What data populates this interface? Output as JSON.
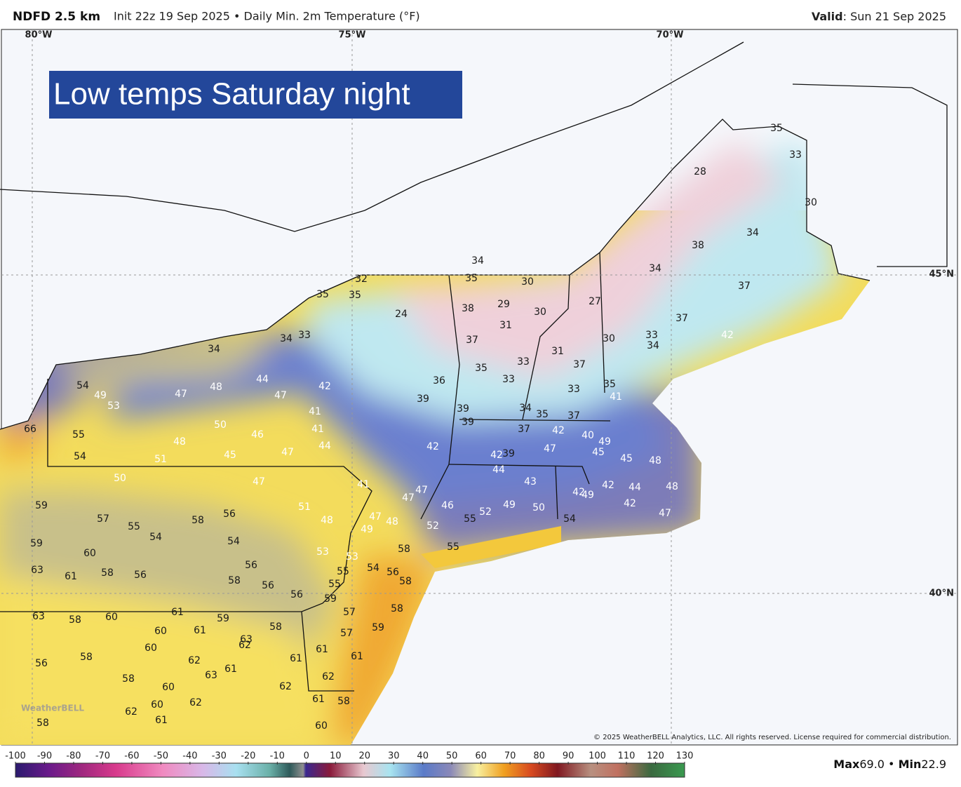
{
  "header": {
    "model": "NDFD 2.5 km",
    "info": "Init 22z 19 Sep 2025 • Daily Min. 2m Temperature (°F)",
    "valid_label": "Valid",
    "valid_date": ": Sun 21 Sep 2025"
  },
  "map": {
    "overlay_title": "Low temps Saturday night",
    "grid_labels": [
      "80°W",
      "75°W",
      "70°W",
      "45°N",
      "40°N"
    ],
    "copyright": "© 2025 WeatherBELL Analytics, LLC. All rights reserved. License required for commercial distribution.",
    "logo": "WeatherBELL",
    "labels": [
      34,
      32,
      35,
      35,
      35,
      30,
      24,
      38,
      29,
      30,
      27,
      31,
      34,
      37,
      37,
      28,
      33,
      35,
      30,
      34,
      38,
      33,
      34,
      34,
      37,
      35,
      33,
      31,
      30,
      33,
      34,
      42,
      37,
      36,
      33,
      33,
      35,
      41,
      39,
      39,
      39,
      34,
      35,
      37,
      44,
      42,
      47,
      48,
      47,
      54,
      49,
      53,
      41,
      41,
      44,
      50,
      46,
      48,
      45,
      47,
      51,
      37,
      42,
      40,
      49,
      45,
      47,
      42,
      42,
      39,
      44,
      48,
      45,
      66,
      55,
      54,
      50,
      47,
      41,
      43,
      42,
      44,
      48,
      42,
      49,
      47,
      47,
      46,
      52,
      55,
      49,
      50,
      51,
      48,
      47,
      49,
      48,
      52,
      42,
      47,
      54,
      59,
      57,
      55,
      58,
      56,
      54,
      54,
      59,
      60,
      53,
      53,
      58,
      55,
      63,
      61,
      58,
      56,
      56,
      58,
      56,
      54,
      56,
      55,
      58,
      55,
      56,
      59,
      57,
      58,
      63,
      58,
      60,
      61,
      59,
      58,
      57,
      59,
      60,
      61,
      60,
      63,
      62,
      61,
      58,
      56,
      62,
      61,
      62,
      61,
      58,
      63,
      61,
      62,
      60,
      61,
      58,
      60,
      62,
      62,
      61,
      60,
      58
    ]
  },
  "colorbar": {
    "ticks": [
      -100,
      -90,
      -80,
      -70,
      -60,
      -50,
      -40,
      -30,
      -20,
      -10,
      0,
      10,
      20,
      30,
      40,
      50,
      60,
      70,
      80,
      90,
      100,
      110,
      120,
      130
    ],
    "max_label": "Max",
    "max": 69.0,
    "min_label": "Min",
    "min": 22.9
  }
}
